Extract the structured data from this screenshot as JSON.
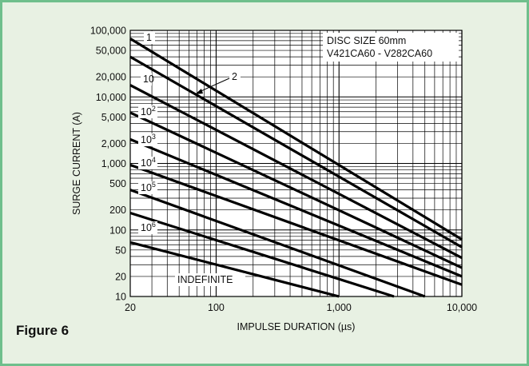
{
  "figure_label": "Figure 6",
  "colors": {
    "frame": "#6fbf8c",
    "background": "#e8f1e3",
    "plot": "#ffffff",
    "lines": "#000000"
  },
  "chart_data": {
    "type": "line",
    "title": "",
    "xlabel": "IMPULSE DURATION (µs)",
    "ylabel": "SURGE CURRENT (A)",
    "x_scale": "log",
    "y_scale": "log",
    "xlim": [
      20,
      10000
    ],
    "ylim": [
      10,
      100000
    ],
    "x_ticks": [
      {
        "value": 20,
        "label": "20"
      },
      {
        "value": 100,
        "label": "100"
      },
      {
        "value": 1000,
        "label": "1,000"
      },
      {
        "value": 10000,
        "label": "10,000"
      }
    ],
    "y_ticks": [
      {
        "value": 100000,
        "label": "100,000"
      },
      {
        "value": 50000,
        "label": "50,000"
      },
      {
        "value": 20000,
        "label": "20,000"
      },
      {
        "value": 10000,
        "label": "10,000"
      },
      {
        "value": 5000,
        "label": "5,000"
      },
      {
        "value": 2000,
        "label": "2,000"
      },
      {
        "value": 1000,
        "label": "1,000"
      },
      {
        "value": 500,
        "label": "500"
      },
      {
        "value": 200,
        "label": "200"
      },
      {
        "value": 100,
        "label": "100"
      },
      {
        "value": 50,
        "label": "50"
      },
      {
        "value": 20,
        "label": "20"
      },
      {
        "value": 10,
        "label": "10"
      }
    ],
    "grid": true,
    "annotation": [
      "DISC SIZE 60mm",
      "V421CA60 - V282CA60"
    ],
    "series": [
      {
        "name": "1",
        "base": "1",
        "exp": "",
        "x": [
          20,
          10000
        ],
        "y": [
          75000,
          72
        ]
      },
      {
        "name": "2",
        "base": "2",
        "exp": "",
        "x": [
          20,
          10000
        ],
        "y": [
          40000,
          55
        ]
      },
      {
        "name": "10",
        "base": "10",
        "exp": "",
        "x": [
          20,
          10000
        ],
        "y": [
          15000,
          38
        ]
      },
      {
        "name": "10²",
        "base": "10",
        "exp": "2",
        "x": [
          20,
          10000
        ],
        "y": [
          5800,
          27
        ]
      },
      {
        "name": "10³",
        "base": "10",
        "exp": "3",
        "x": [
          20,
          10000
        ],
        "y": [
          2300,
          20
        ]
      },
      {
        "name": "10⁴",
        "base": "10",
        "exp": "4",
        "x": [
          20,
          10000
        ],
        "y": [
          950,
          15
        ]
      },
      {
        "name": "10⁵",
        "base": "10",
        "exp": "5",
        "x": [
          20,
          5000
        ],
        "y": [
          400,
          10
        ]
      },
      {
        "name": "10⁶",
        "base": "10",
        "exp": "6",
        "x": [
          20,
          2800
        ],
        "y": [
          180,
          10
        ]
      },
      {
        "name": "INDEFINITE",
        "base": "INDEFINITE",
        "exp": "",
        "x": [
          20,
          1000
        ],
        "y": [
          65,
          10
        ]
      }
    ]
  }
}
